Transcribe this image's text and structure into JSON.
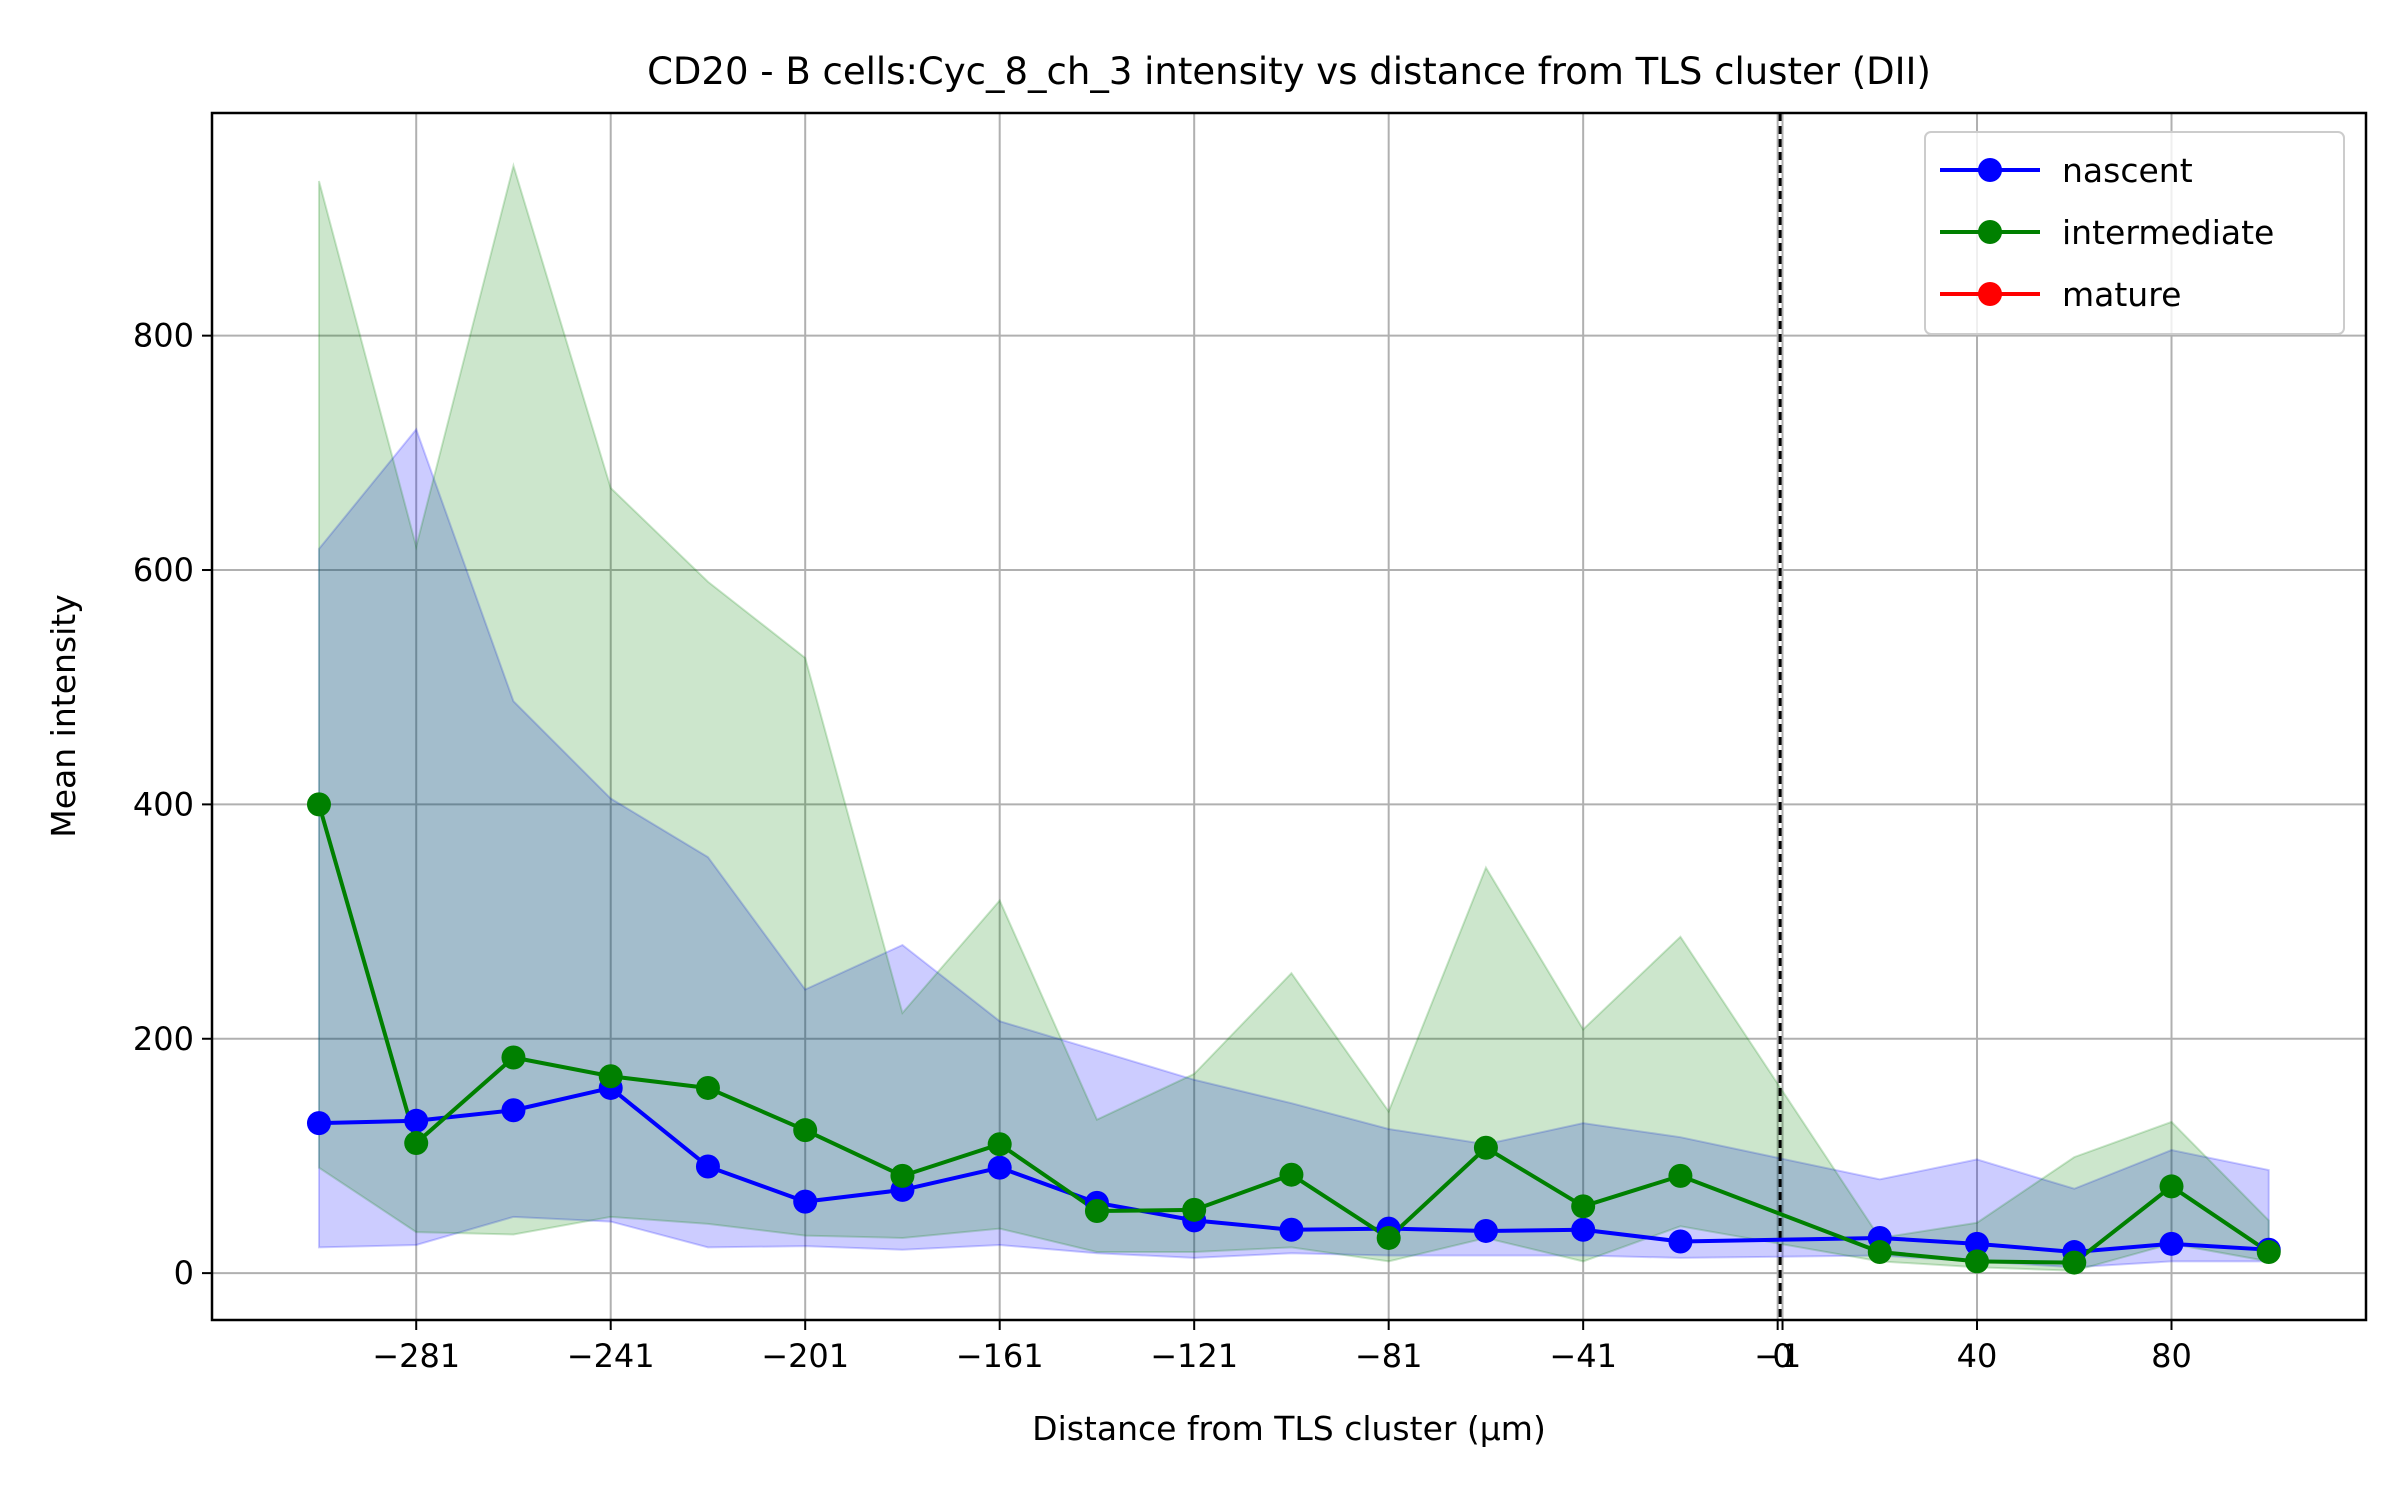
{
  "chart_data": {
    "type": "line",
    "title": "CD20 - B cells:Cyc_8_ch_3 intensity vs distance from TLS cluster (DII)",
    "xlabel": "Distance from TLS cluster (μm)",
    "ylabel": "Mean intensity",
    "xlim": [
      -323,
      120
    ],
    "ylim": [
      -40,
      990
    ],
    "x_ticks": [
      -281,
      -241,
      -201,
      -161,
      -121,
      -81,
      -41,
      -1,
      0,
      40,
      80
    ],
    "x_tick_labels": [
      "−281",
      "−241",
      "−201",
      "−161",
      "−121",
      "−81",
      "−41",
      "−1",
      "0",
      "40",
      "80"
    ],
    "y_ticks": [
      0,
      200,
      400,
      600,
      800
    ],
    "y_tick_labels": [
      "0",
      "200",
      "400",
      "600",
      "800"
    ],
    "grid": true,
    "legend_position": "top-right",
    "vline_x": -0.5,
    "series": [
      {
        "name": "nascent",
        "color": "#0000ff",
        "fill_color": "#0000ff",
        "x": [
          -301,
          -281,
          -261,
          -241,
          -221,
          -201,
          -181,
          -161,
          -141,
          -121,
          -101,
          -81,
          -61,
          -41,
          -21,
          20,
          40,
          60,
          80,
          100
        ],
        "values": [
          128,
          130,
          139,
          158,
          91,
          61,
          71,
          90,
          60,
          45,
          37,
          38,
          36,
          37,
          27,
          30,
          25,
          18,
          25,
          20
        ],
        "lower": [
          22,
          24,
          48,
          44,
          22,
          23,
          20,
          24,
          17,
          13,
          17,
          15,
          15,
          15,
          13,
          15,
          10,
          5,
          10,
          10
        ],
        "upper": [
          618,
          720,
          488,
          405,
          355,
          242,
          280,
          215,
          190,
          165,
          145,
          123,
          110,
          128,
          116,
          80,
          97,
          72,
          105,
          88
        ]
      },
      {
        "name": "intermediate",
        "color": "#008000",
        "fill_color": "#008000",
        "x": [
          -301,
          -281,
          -261,
          -241,
          -221,
          -201,
          -181,
          -161,
          -141,
          -121,
          -101,
          -81,
          -61,
          -41,
          -21,
          20,
          40,
          60,
          80,
          100
        ],
        "values": [
          400,
          111,
          184,
          168,
          158,
          122,
          83,
          110,
          53,
          54,
          84,
          30,
          107,
          57,
          83,
          18,
          10,
          9,
          74,
          18
        ],
        "lower": [
          90,
          35,
          33,
          48,
          42,
          32,
          30,
          38,
          18,
          18,
          22,
          10,
          30,
          10,
          40,
          10,
          5,
          2,
          25,
          10
        ],
        "upper": [
          932,
          620,
          945,
          670,
          590,
          525,
          222,
          318,
          131,
          170,
          256,
          138,
          346,
          208,
          287,
          30,
          43,
          99,
          129,
          45
        ]
      },
      {
        "name": "mature",
        "color": "#ff0000",
        "fill_color": "#ff0000",
        "x": [],
        "values": [],
        "lower": [],
        "upper": []
      }
    ]
  }
}
